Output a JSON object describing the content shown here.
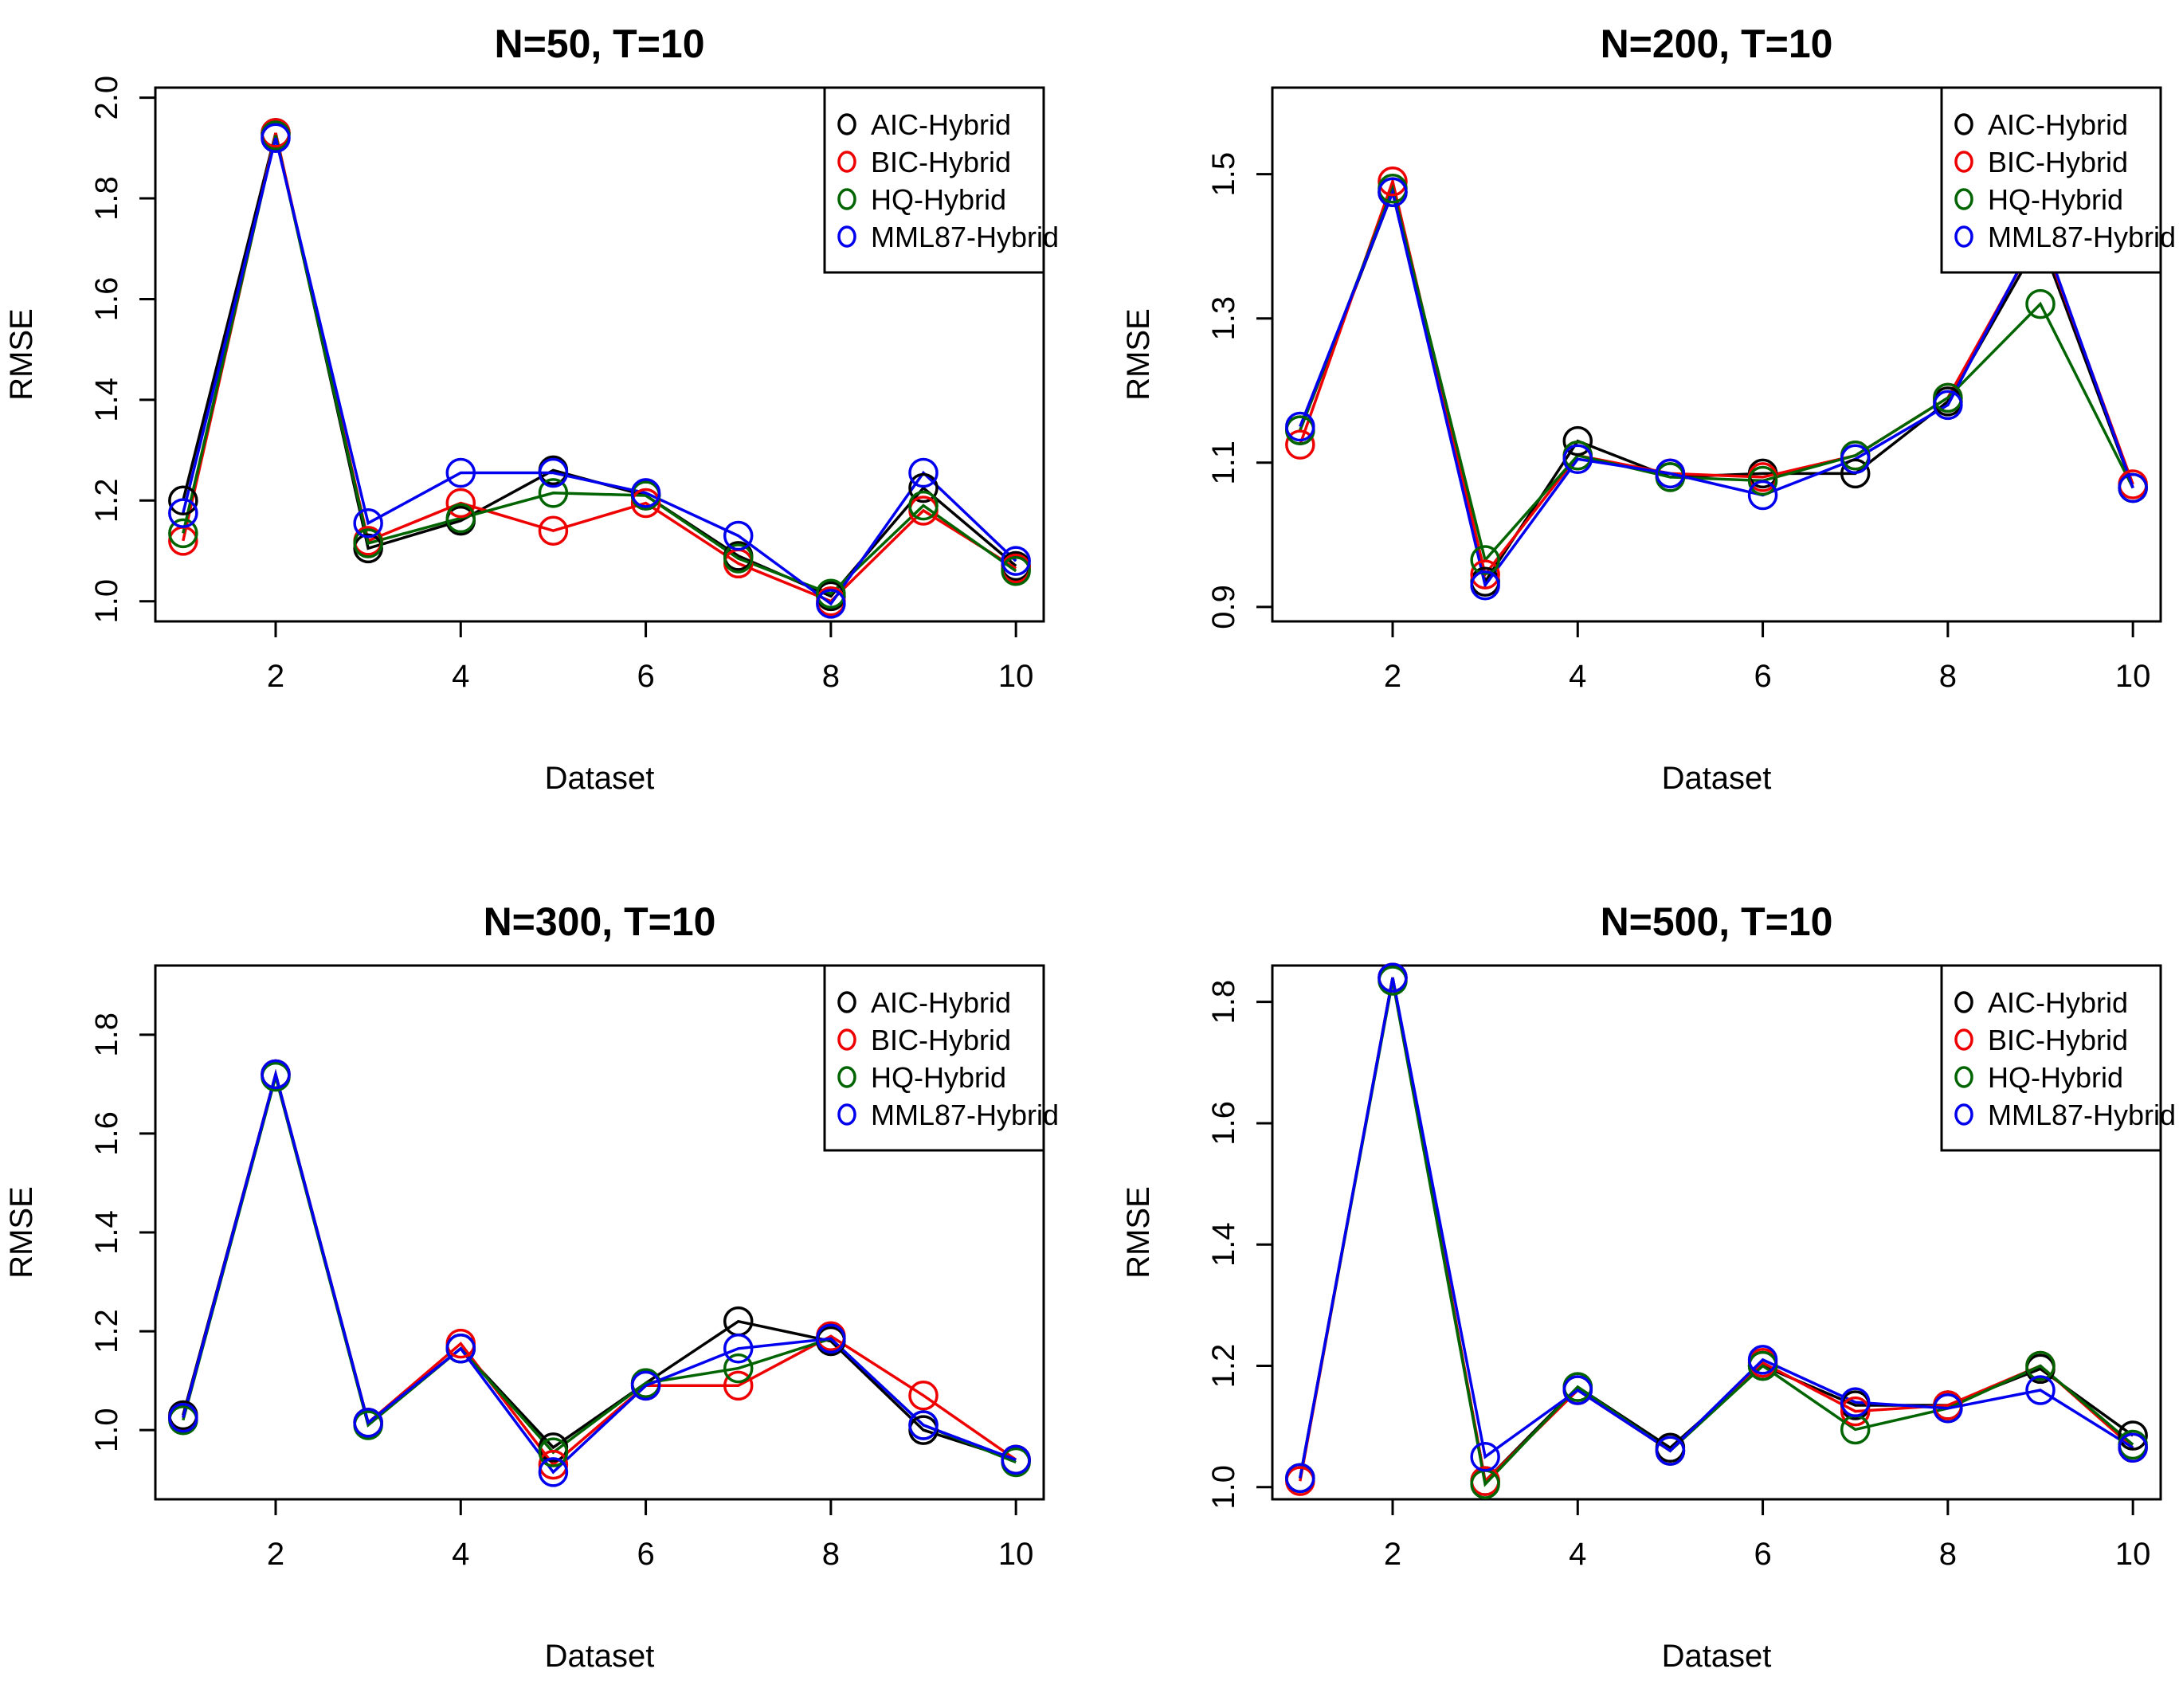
{
  "colors": {
    "AIC-Hybrid": "#000000",
    "BIC-Hybrid": "#ee0000",
    "HQ-Hybrid": "#006400",
    "MML87-Hybrid": "#0000ee"
  },
  "chart_data": [
    {
      "type": "line",
      "title": "N=50, T=10",
      "xlabel": "Dataset",
      "ylabel": "RMSE",
      "x": [
        1,
        2,
        3,
        4,
        5,
        6,
        7,
        8,
        9,
        10
      ],
      "xlim": [
        0.7,
        10.3
      ],
      "xticks": [
        2,
        4,
        6,
        8,
        10
      ],
      "ylim": [
        0.96,
        2.02
      ],
      "yticks": [
        "1.0",
        "1.2",
        "1.4",
        "1.6",
        "1.8",
        "2.0"
      ],
      "legend": "top-right",
      "series": [
        {
          "name": "AIC-Hybrid",
          "values": [
            1.2,
            1.93,
            1.105,
            1.16,
            1.26,
            1.21,
            1.09,
            1.01,
            1.225,
            1.07
          ]
        },
        {
          "name": "BIC-Hybrid",
          "values": [
            1.12,
            1.93,
            1.12,
            1.195,
            1.14,
            1.195,
            1.075,
            1.0,
            1.18,
            1.065
          ]
        },
        {
          "name": "HQ-Hybrid",
          "values": [
            1.135,
            1.925,
            1.115,
            1.165,
            1.215,
            1.21,
            1.085,
            1.015,
            1.19,
            1.06
          ]
        },
        {
          "name": "MML87-Hybrid",
          "values": [
            1.175,
            1.92,
            1.155,
            1.255,
            1.255,
            1.215,
            1.13,
            0.995,
            1.255,
            1.08
          ]
        }
      ]
    },
    {
      "type": "line",
      "title": "N=200, T=10",
      "xlabel": "Dataset",
      "ylabel": "RMSE",
      "x": [
        1,
        2,
        3,
        4,
        5,
        6,
        7,
        8,
        9,
        10
      ],
      "xlim": [
        0.7,
        10.3
      ],
      "xticks": [
        2,
        4,
        6,
        8,
        10
      ],
      "ylim": [
        0.88,
        1.62
      ],
      "yticks": [
        "0.9",
        "1.1",
        "1.3",
        "1.5"
      ],
      "legend": "top-right",
      "series": [
        {
          "name": "AIC-Hybrid",
          "values": [
            1.145,
            1.475,
            0.935,
            1.13,
            1.08,
            1.085,
            1.085,
            1.185,
            1.41,
            1.065
          ]
        },
        {
          "name": "BIC-Hybrid",
          "values": [
            1.125,
            1.49,
            0.945,
            1.11,
            1.085,
            1.08,
            1.11,
            1.19,
            1.42,
            1.07
          ]
        },
        {
          "name": "HQ-Hybrid",
          "values": [
            1.145,
            1.48,
            0.965,
            1.11,
            1.08,
            1.075,
            1.11,
            1.19,
            1.32,
            1.065
          ]
        },
        {
          "name": "MML87-Hybrid",
          "values": [
            1.15,
            1.475,
            0.93,
            1.105,
            1.085,
            1.055,
            1.105,
            1.18,
            1.425,
            1.065
          ]
        }
      ]
    },
    {
      "type": "line",
      "title": "N=300, T=10",
      "xlabel": "Dataset",
      "ylabel": "RMSE",
      "x": [
        1,
        2,
        3,
        4,
        5,
        6,
        7,
        8,
        9,
        10
      ],
      "xlim": [
        0.7,
        10.3
      ],
      "xticks": [
        2,
        4,
        6,
        8,
        10
      ],
      "ylim": [
        0.86,
        1.94
      ],
      "yticks": [
        "1.0",
        "1.2",
        "1.4",
        "1.6",
        "1.8"
      ],
      "legend": "top-right",
      "series": [
        {
          "name": "AIC-Hybrid",
          "values": [
            1.03,
            1.72,
            1.015,
            1.165,
            0.965,
            1.095,
            1.22,
            1.18,
            1.0,
            0.94
          ]
        },
        {
          "name": "BIC-Hybrid",
          "values": [
            1.025,
            1.72,
            1.015,
            1.175,
            0.93,
            1.09,
            1.09,
            1.19,
            1.07,
            0.94
          ]
        },
        {
          "name": "HQ-Hybrid",
          "values": [
            1.02,
            1.715,
            1.01,
            1.165,
            0.955,
            1.095,
            1.125,
            1.185,
            1.01,
            0.935
          ]
        },
        {
          "name": "MML87-Hybrid",
          "values": [
            1.025,
            1.72,
            1.015,
            1.165,
            0.915,
            1.09,
            1.165,
            1.185,
            1.01,
            0.94
          ]
        }
      ]
    },
    {
      "type": "line",
      "title": "N=500, T=10",
      "xlabel": "Dataset",
      "ylabel": "RMSE",
      "x": [
        1,
        2,
        3,
        4,
        5,
        6,
        7,
        8,
        9,
        10
      ],
      "xlim": [
        0.7,
        10.3
      ],
      "xticks": [
        2,
        4,
        6,
        8,
        10
      ],
      "ylim": [
        0.98,
        1.86
      ],
      "yticks": [
        "1.0",
        "1.2",
        "1.4",
        "1.6",
        "1.8"
      ],
      "legend": "top-right",
      "series": [
        {
          "name": "AIC-Hybrid",
          "values": [
            1.015,
            1.84,
            1.01,
            1.165,
            1.065,
            1.2,
            1.135,
            1.135,
            1.195,
            1.085
          ]
        },
        {
          "name": "BIC-Hybrid",
          "values": [
            1.01,
            1.84,
            1.01,
            1.16,
            1.06,
            1.205,
            1.125,
            1.135,
            1.2,
            1.065
          ]
        },
        {
          "name": "HQ-Hybrid",
          "values": [
            1.015,
            1.835,
            1.005,
            1.165,
            1.06,
            1.2,
            1.095,
            1.13,
            1.2,
            1.07
          ]
        },
        {
          "name": "MML87-Hybrid",
          "values": [
            1.015,
            1.84,
            1.05,
            1.16,
            1.06,
            1.21,
            1.14,
            1.13,
            1.16,
            1.065
          ]
        }
      ]
    }
  ]
}
